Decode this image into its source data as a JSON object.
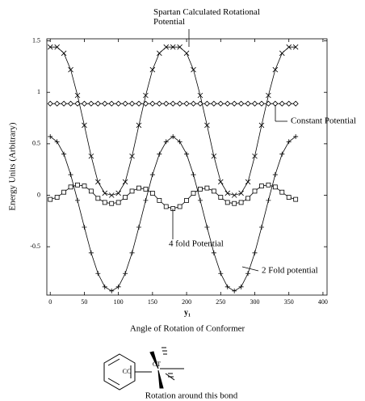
{
  "chart_data": {
    "type": "line",
    "y_label": "Energy Units (Arbitrary)",
    "x_label": "y₁",
    "x_title": "Angle of Rotation of Conformer",
    "x": [
      0,
      10,
      20,
      30,
      40,
      50,
      60,
      70,
      80,
      90,
      100,
      110,
      120,
      130,
      140,
      150,
      160,
      170,
      180,
      190,
      200,
      210,
      220,
      230,
      240,
      250,
      260,
      270,
      280,
      290,
      300,
      310,
      320,
      330,
      340,
      350,
      360
    ],
    "series": [
      {
        "name": "Spartan Calculated Rotational Potential",
        "color": "#000",
        "marker": "x",
        "values": [
          1.44,
          1.44,
          1.38,
          1.22,
          0.97,
          0.68,
          0.38,
          0.13,
          0.02,
          0.0,
          0.02,
          0.13,
          0.38,
          0.68,
          0.97,
          1.22,
          1.38,
          1.44,
          1.44,
          1.44,
          1.38,
          1.22,
          0.97,
          0.68,
          0.38,
          0.13,
          0.02,
          0.0,
          0.02,
          0.13,
          0.38,
          0.68,
          0.97,
          1.22,
          1.38,
          1.44,
          1.44
        ]
      },
      {
        "name": "Constant Potential",
        "color": "#000",
        "marker": "diamond",
        "values": [
          0.89,
          0.89,
          0.89,
          0.89,
          0.89,
          0.89,
          0.89,
          0.89,
          0.89,
          0.89,
          0.89,
          0.89,
          0.89,
          0.89,
          0.89,
          0.89,
          0.89,
          0.89,
          0.89,
          0.89,
          0.89,
          0.89,
          0.89,
          0.89,
          0.89,
          0.89,
          0.89,
          0.89,
          0.89,
          0.89,
          0.89,
          0.89,
          0.89,
          0.89,
          0.89,
          0.89,
          0.89
        ]
      },
      {
        "name": "4 fold Potential",
        "color": "#000",
        "marker": "square",
        "values": [
          -0.04,
          -0.02,
          0.03,
          0.08,
          0.1,
          0.09,
          0.04,
          -0.03,
          -0.07,
          -0.08,
          -0.07,
          -0.02,
          0.04,
          0.07,
          0.06,
          0.02,
          -0.05,
          -0.11,
          -0.13,
          -0.11,
          -0.05,
          0.02,
          0.06,
          0.07,
          0.04,
          -0.02,
          -0.07,
          -0.08,
          -0.07,
          -0.03,
          0.04,
          0.09,
          0.1,
          0.08,
          0.03,
          -0.02,
          -0.04
        ]
      },
      {
        "name": "2 Fold potential",
        "color": "#000",
        "marker": "plus",
        "values": [
          0.57,
          0.52,
          0.4,
          0.2,
          -0.05,
          -0.31,
          -0.56,
          -0.76,
          -0.89,
          -0.93,
          -0.89,
          -0.76,
          -0.56,
          -0.31,
          -0.05,
          0.2,
          0.4,
          0.52,
          0.57,
          0.52,
          0.4,
          0.2,
          -0.05,
          -0.31,
          -0.56,
          -0.76,
          -0.89,
          -0.93,
          -0.89,
          -0.76,
          -0.56,
          -0.31,
          -0.05,
          0.2,
          0.4,
          0.52,
          0.57
        ]
      }
    ],
    "xlim": [
      -5,
      406
    ],
    "ylim": [
      -0.97,
      1.52
    ],
    "xticks": [
      0,
      50,
      100,
      150,
      200,
      250,
      300,
      350,
      400
    ],
    "yticks": [
      -0.5,
      0,
      0.5,
      1,
      1.5
    ]
  },
  "figure": {
    "atom_left": "CC",
    "atom_right": "CT",
    "caption": "Rotation around this bond"
  }
}
